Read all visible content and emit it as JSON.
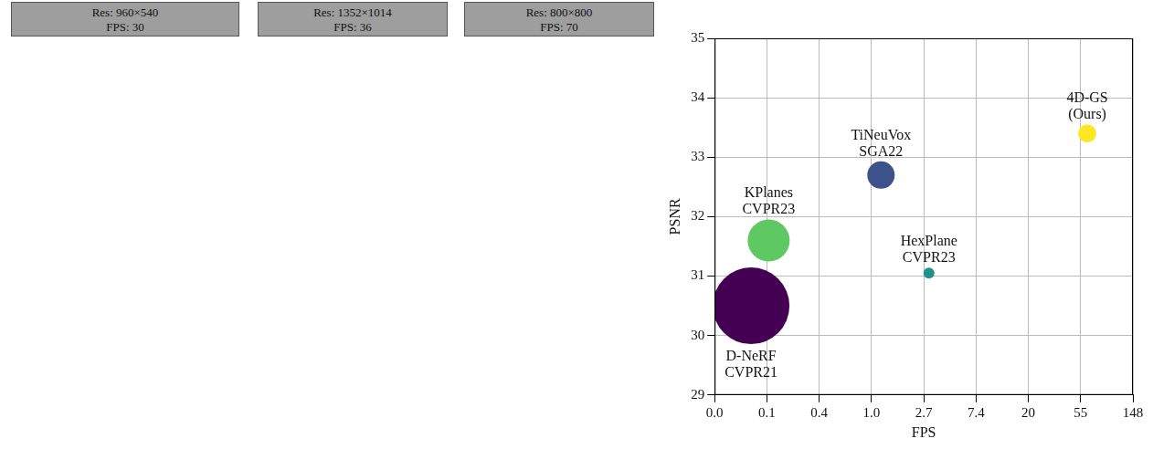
{
  "panels": [
    {
      "resolution": "Res: 960×540",
      "fps": "FPS: 30"
    },
    {
      "resolution": "Res: 1352×1014",
      "fps": "FPS: 36"
    },
    {
      "resolution": "Res: 800×800",
      "fps": "FPS: 70"
    }
  ],
  "chart_data": {
    "type": "bubble",
    "x_label": "FPS",
    "y_label": "PSNR",
    "log": "x",
    "grid": true,
    "xlim": [
      0.0498,
      148.41
    ],
    "xticks": [
      {
        "value": 0.0498,
        "label": "0.0"
      },
      {
        "value": 0.1353,
        "label": "0.1"
      },
      {
        "value": 0.3679,
        "label": "0.4"
      },
      {
        "value": 1,
        "label": "1.0"
      },
      {
        "value": 2.718,
        "label": "2.7"
      },
      {
        "value": 7.389,
        "label": "7.4"
      },
      {
        "value": 20.09,
        "label": "20"
      },
      {
        "value": 54.6,
        "label": "55"
      },
      {
        "value": 148.41,
        "label": "148"
      }
    ],
    "ylim": [
      29,
      35
    ],
    "yticks": [
      29,
      30,
      31,
      32,
      33,
      34,
      35
    ],
    "series": [
      {
        "name": "D-NeRF",
        "venue": "CVPR21",
        "color": "#440154",
        "x": 0.1,
        "values": [
          30.5
        ],
        "sizes": [
          42
        ]
      },
      {
        "name": "KPlanes",
        "venue": "CVPR23",
        "color": "#5ec962",
        "x": 0.14,
        "values": [
          31.6
        ],
        "sizes": [
          23
        ]
      },
      {
        "name": "TiNeuVox",
        "venue": "SGA22",
        "color": "#3b528b",
        "x": 1.2,
        "values": [
          32.7
        ],
        "sizes": [
          15
        ]
      },
      {
        "name": "HexPlane",
        "venue": "CVPR23",
        "color": "#21918c",
        "x": 3.0,
        "values": [
          31.05
        ],
        "sizes": [
          6
        ]
      },
      {
        "name": "4D-GS",
        "venue": "(Ours)",
        "color": "#fde725",
        "x": 62,
        "values": [
          33.4
        ],
        "sizes": [
          10
        ]
      }
    ]
  }
}
